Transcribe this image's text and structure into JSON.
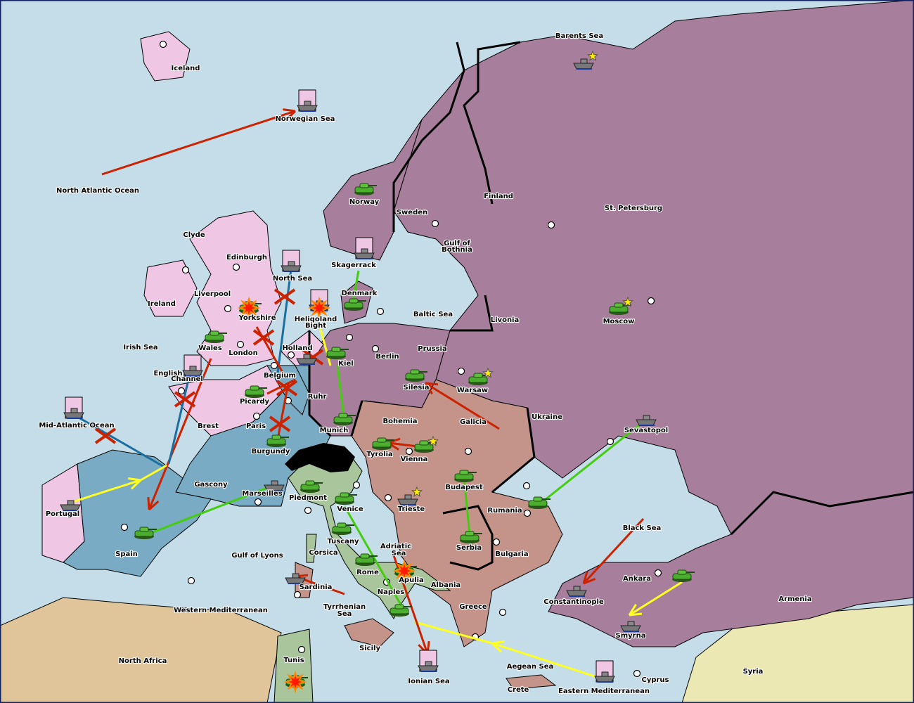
{
  "colors": {
    "sea": "#c5dde8",
    "england": "#efc6e4",
    "france": "#79acc4",
    "germany_russia_turkey": "#a77f9c",
    "austria": "#c4948a",
    "italy": "#a8c59c",
    "neutral_africa": "#e0c49a",
    "syria": "#ebe8b4",
    "move_order": "#cc2200",
    "support_order": "#44cc11",
    "convoy_order": "#ffff22",
    "english_move": "#1a6fa0",
    "star": "#ffee00"
  },
  "provinces": [
    "Barents Sea",
    "Iceland",
    "Norwegian Sea",
    "North Atlantic Ocean",
    "Norway",
    "Sweden",
    "Finland",
    "St. Petersburg",
    "Clyde",
    "Edinburgh",
    "Gulf of",
    "Bothnia",
    "Skagerrack",
    "North Sea",
    "Liverpool",
    "Denmark",
    "Ireland",
    "Yorkshire",
    "Heligoland",
    "Bight",
    "Baltic Sea",
    "Livonia",
    "Moscow",
    "Irish Sea",
    "Wales",
    "London",
    "Holland",
    "Prussia",
    "Kiel",
    "Berlin",
    "English",
    "Channel",
    "Belgium",
    "Silesia",
    "Warsaw",
    "Ruhr",
    "Picardy",
    "Ukraine",
    "Mid-Atlantic Ocean",
    "Brest",
    "Paris",
    "Bohemia",
    "Galicia",
    "Sevastopol",
    "Munich",
    "Burgundy",
    "Tyrolia",
    "Vienna",
    "Gascony",
    "Budapest",
    "Marseilles",
    "Piedmont",
    "Portugal",
    "Venice",
    "Trieste",
    "Rumania",
    "Black Sea",
    "Tuscany",
    "Adriatic",
    "Sea",
    "Serbia",
    "Bulgaria",
    "Spain",
    "Gulf of Lyons",
    "Corsica",
    "Rome",
    "Apulia",
    "Albania",
    "Sardinia",
    "Ankara",
    "Naples",
    "Constantinople",
    "Armenia",
    "Western Mediterranean",
    "Tyrrhenian",
    "Sea",
    "Greece",
    "Smyrna",
    "Sicily",
    "North Africa",
    "Tunis",
    "Aegean Sea",
    "Ionian Sea",
    "Crete",
    "Eastern Mediterranean",
    "Cyprus",
    "Syria"
  ],
  "unit_icons": {
    "army": "tank-icon",
    "fleet": "ship-icon",
    "supply_star": "star-icon",
    "dislodged": "explosion-icon"
  }
}
